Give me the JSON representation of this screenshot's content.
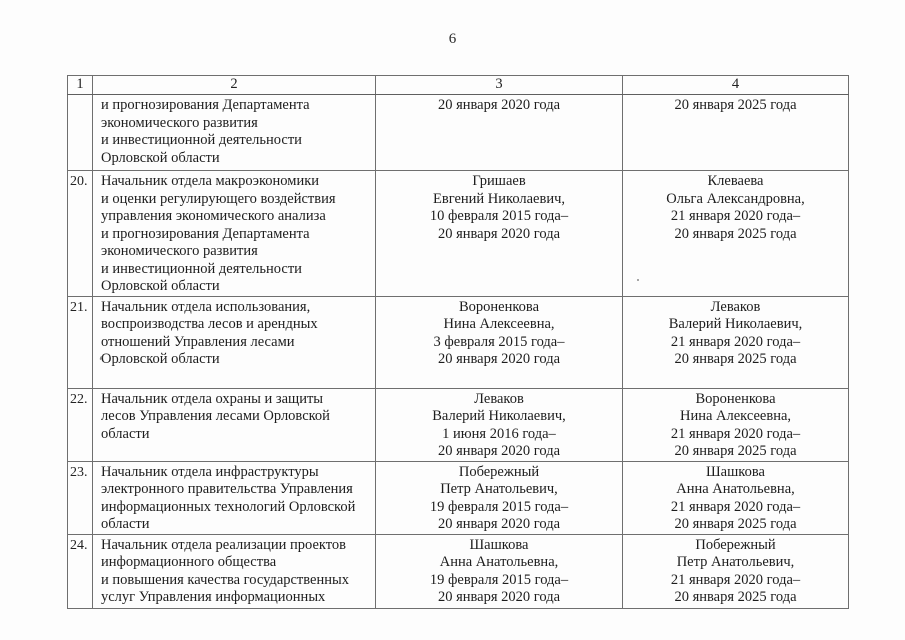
{
  "page": {
    "number": "6"
  },
  "table": {
    "headers": [
      "1",
      "2",
      "3",
      "4"
    ],
    "rows": [
      {
        "num": "",
        "position": "и прогнозирования Департамента\nэкономического развития\nи инвестиционной деятельности\nОрловской области",
        "outgoing": "20 января 2020 года",
        "incoming": "20 января 2025 года"
      },
      {
        "num": "20.",
        "position": "Начальник отдела макроэкономики\nи оценки регулирующего воздействия\nуправления экономического анализа\nи прогнозирования Департамента\nэкономического развития\nи инвестиционной деятельности\nОрловской области",
        "outgoing": "Гришаев\nЕвгений Николаевич,\n10 февраля 2015 года–\n20 января 2020 года",
        "incoming": "Клеваева\nОльга Александровна,\n21 января 2020 года–\n20 января 2025 года"
      },
      {
        "num": "21.",
        "position": "Начальник отдела использования,\nвоспроизводства лесов и арендных\nотношений Управления лесами\nОрловской области",
        "outgoing": "Вороненкова\nНина Алексеевна,\n3 февраля 2015 года–\n20 января 2020 года",
        "incoming": "Леваков\nВалерий Николаевич,\n21 января 2020 года–\n20 января 2025 года"
      },
      {
        "num": "22.",
        "position": "Начальник отдела охраны и защиты\nлесов Управления лесами Орловской\nобласти",
        "outgoing": "Леваков\nВалерий Николаевич,\n1 июня 2016 года–\n20 января 2020 года",
        "incoming": "Вороненкова\nНина Алексеевна,\n21 января 2020 года–\n20 января 2025 года"
      },
      {
        "num": "23.",
        "position": "Начальник отдела инфраструктуры\nэлектронного правительства Управления\nинформационных технологий Орловской\nобласти",
        "outgoing": "Побережный\nПетр Анатольевич,\n19 февраля 2015 года–\n20 января 2020 года",
        "incoming": "Шашкова\nАнна Анатольевна,\n21 января 2020 года–\n20 января 2025 года"
      },
      {
        "num": "24.",
        "position": "Начальник отдела реализации проектов\nинформационного общества\nи повышения качества государственных\nуслуг Управления информационных",
        "outgoing": "Шашкова\nАнна Анатольевна,\n19 февраля 2015 года–\n20 января 2020 года",
        "incoming": "Побережный\nПетр Анатольевич,\n21 января 2020 года–\n20 января 2025 года"
      }
    ]
  }
}
